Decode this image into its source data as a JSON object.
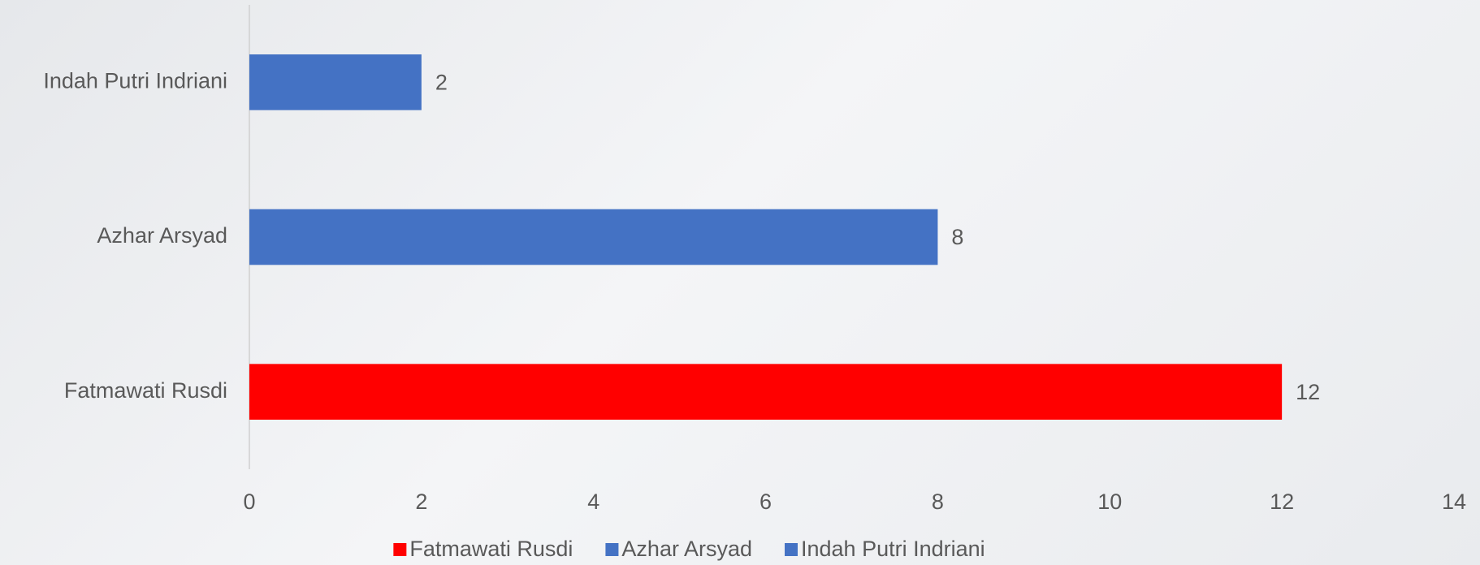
{
  "chart_data": {
    "type": "bar",
    "orientation": "horizontal",
    "categories": [
      "Fatmawati Rusdi",
      "Azhar Arsyad",
      "Indah Putri Indriani"
    ],
    "values": [
      12,
      8,
      2
    ],
    "colors": [
      "#ff0000",
      "#4472c4",
      "#4472c4"
    ],
    "xlim": [
      0,
      14
    ],
    "xticks": [
      0,
      2,
      4,
      6,
      8,
      10,
      12,
      14
    ],
    "grid": false,
    "legend": "bottom"
  }
}
